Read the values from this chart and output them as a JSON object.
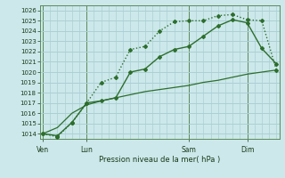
{
  "background_color": "#cce8ea",
  "grid_color": "#aad0d4",
  "line_color": "#2d6e2d",
  "title": "Pression niveau de la mer( hPa )",
  "ylim": [
    1013.5,
    1026.5
  ],
  "yticks": [
    1014,
    1015,
    1016,
    1017,
    1018,
    1019,
    1020,
    1021,
    1022,
    1023,
    1024,
    1025,
    1026
  ],
  "day_labels": [
    "Ven",
    "Lun",
    "Sam",
    "Dim"
  ],
  "day_positions": [
    0,
    3,
    10,
    14
  ],
  "n_points": 17,
  "line1_x": [
    0,
    0.5,
    1,
    1.5,
    2,
    2.5,
    3,
    3.5,
    4,
    4.5,
    5,
    5.5,
    6,
    6.5,
    7,
    7.5,
    8,
    8.5,
    9,
    9.5,
    10,
    10.5,
    11,
    11.5,
    12,
    12.5,
    13,
    13.5,
    14,
    14.5,
    15,
    15.5,
    16
  ],
  "line1_y": [
    1014.0,
    1013.85,
    1013.7,
    1014.4,
    1015.1,
    1016.0,
    1017.0,
    1018.0,
    1019.0,
    1019.25,
    1019.5,
    1020.9,
    1022.2,
    1022.35,
    1022.5,
    1023.25,
    1024.0,
    1024.45,
    1024.9,
    1024.95,
    1025.0,
    1025.0,
    1025.0,
    1025.25,
    1025.5,
    1025.55,
    1025.6,
    1025.35,
    1025.1,
    1025.05,
    1025.0,
    1022.6,
    1020.2
  ],
  "line2_x": [
    0,
    1,
    2,
    3,
    4,
    5,
    6,
    7,
    8,
    9,
    10,
    11,
    12,
    13,
    14,
    15,
    16
  ],
  "line2_y": [
    1014.0,
    1013.8,
    1015.1,
    1017.0,
    1017.2,
    1017.5,
    1020.0,
    1020.3,
    1021.5,
    1022.2,
    1022.5,
    1023.5,
    1024.5,
    1025.1,
    1024.8,
    1022.3,
    1020.8
  ],
  "line3_x": [
    0,
    1,
    2,
    3,
    4,
    5,
    6,
    7,
    8,
    9,
    10,
    11,
    12,
    13,
    14,
    15,
    16
  ],
  "line3_y": [
    1014.0,
    1014.6,
    1016.0,
    1016.8,
    1017.2,
    1017.5,
    1017.8,
    1018.1,
    1018.3,
    1018.5,
    1018.7,
    1019.0,
    1019.2,
    1019.5,
    1019.8,
    1020.0,
    1020.2
  ],
  "vline_positions": [
    0,
    3,
    10,
    14
  ]
}
